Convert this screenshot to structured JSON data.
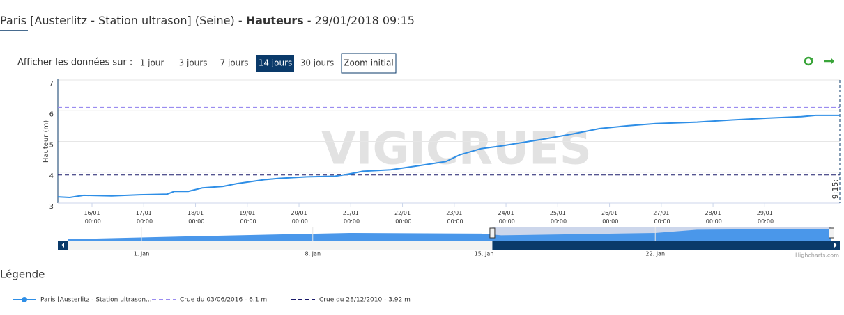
{
  "header": {
    "station": "Paris [Austerlitz - Station ultrason] (Seine) - ",
    "measure": "Hauteurs",
    "datetime": " - 29/01/2018 09:15"
  },
  "controls": {
    "label": "Afficher les données sur :",
    "buttons": [
      "1 jour",
      "3 jours",
      "7 jours",
      "14 jours",
      "30 jours"
    ],
    "selected": 3,
    "zoom": "Zoom initial"
  },
  "legend_title": "Légende",
  "credits": "Highcharts.com",
  "watermark": "VIGICRUES",
  "chart_data": [
    {
      "type": "line",
      "ylabel": "Hauteur (m)",
      "ylim": [
        3,
        7
      ],
      "yticks": [
        3,
        4,
        5,
        6,
        7
      ],
      "grid": true,
      "xlim": [
        15.34,
        30.45
      ],
      "xticks": [
        {
          "value": 16,
          "label": "16/01 00:00"
        },
        {
          "value": 17,
          "label": "17/01 00:00"
        },
        {
          "value": 18,
          "label": "18/01 00:00"
        },
        {
          "value": 19,
          "label": "19/01 00:00"
        },
        {
          "value": 20,
          "label": "20/01 00:00"
        },
        {
          "value": 21,
          "label": "21/01 00:00"
        },
        {
          "value": 22,
          "label": "22/01 00:00"
        },
        {
          "value": 23,
          "label": "23/01 00:00"
        },
        {
          "value": 24,
          "label": "24/01 00:00"
        },
        {
          "value": 25,
          "label": "25/01 00:00"
        },
        {
          "value": 26,
          "label": "26/01 00:00"
        },
        {
          "value": 27,
          "label": "27/01 00:00"
        },
        {
          "value": 28,
          "label": "28/01 00:00"
        },
        {
          "value": 29,
          "label": "29/01 00:00"
        }
      ],
      "series": [
        {
          "name": "Paris [Austerlitz - Station ultrason...",
          "color": "#2e8ee6",
          "x": [
            15.34,
            15.57,
            15.84,
            16.38,
            16.92,
            17.45,
            17.59,
            17.86,
            18.13,
            18.53,
            18.8,
            19.34,
            19.61,
            20.15,
            20.69,
            20.96,
            21.23,
            21.77,
            22.3,
            22.84,
            23.11,
            23.52,
            23.92,
            24.73,
            25.27,
            25.81,
            26.35,
            26.89,
            27.69,
            28.37,
            29.04,
            29.71,
            29.98,
            30.45
          ],
          "values": [
            3.2,
            3.18,
            3.25,
            3.23,
            3.27,
            3.29,
            3.38,
            3.38,
            3.49,
            3.54,
            3.63,
            3.76,
            3.8,
            3.85,
            3.87,
            3.94,
            4.03,
            4.08,
            4.21,
            4.35,
            4.57,
            4.77,
            4.86,
            5.08,
            5.24,
            5.42,
            5.51,
            5.58,
            5.63,
            5.7,
            5.76,
            5.81,
            5.85,
            5.85
          ]
        }
      ],
      "plot_lines": [
        {
          "name": "Crue du 03/06/2016 - 6.1 m",
          "value": 6.1,
          "color": "#9a8cf0"
        },
        {
          "name": "Crue du 28/12/2010 - 3.92 m",
          "value": 3.92,
          "color": "#1b1b6b"
        }
      ],
      "annotation": {
        "x": 30.45,
        "text": "9:15:"
      }
    },
    {
      "type": "area",
      "color": "#4a97ea",
      "ylim": [
        2,
        6.5
      ],
      "xlim": [
        -2.02,
        29.2
      ],
      "xticks": [
        {
          "value": 1,
          "label": "1. Jan"
        },
        {
          "value": 8,
          "label": "8. Jan"
        },
        {
          "value": 15,
          "label": "15. Jan"
        },
        {
          "value": 22,
          "label": "22. Jan"
        }
      ],
      "x": [
        -2.02,
        3.8,
        9.5,
        14.9,
        15.7,
        22.0,
        23.7,
        29.2
      ],
      "values": [
        2.5,
        3.6,
        4.6,
        4.4,
        3.8,
        4.6,
        5.7,
        6.0
      ]
    }
  ]
}
